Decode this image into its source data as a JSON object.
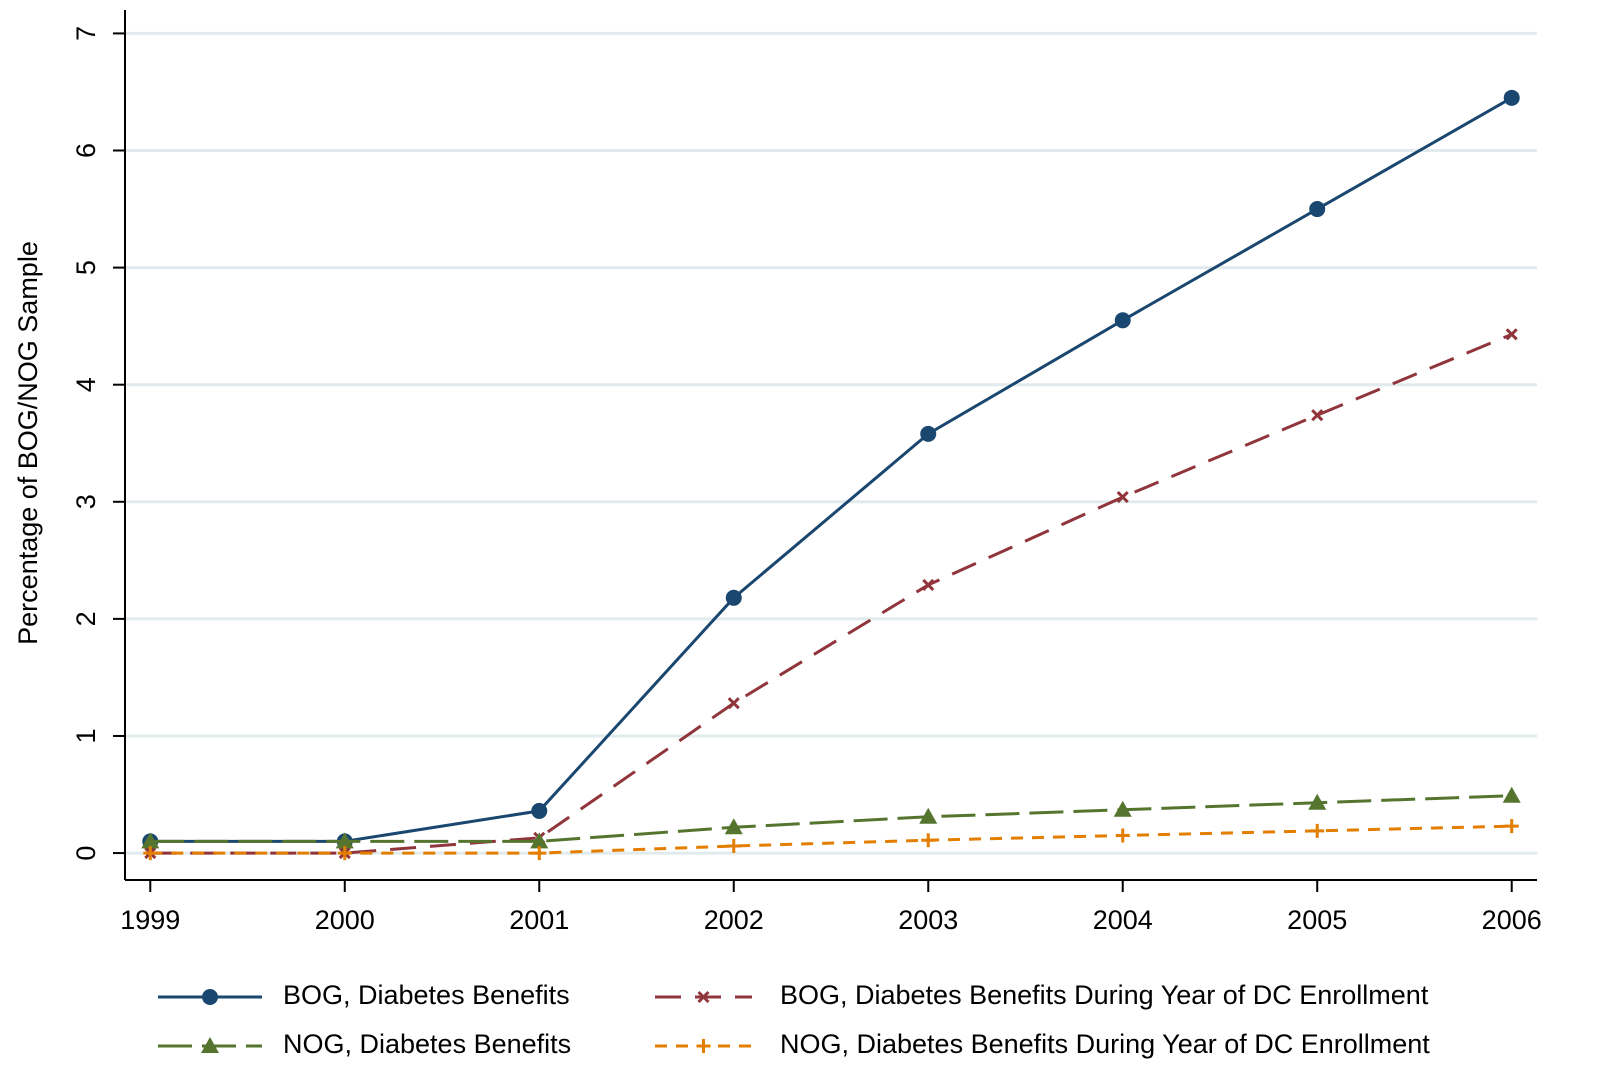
{
  "chart_data": {
    "type": "line",
    "y_label": "Percentage of BOG/NOG Sample",
    "x": [
      1999,
      2000,
      2001,
      2002,
      2003,
      2004,
      2005,
      2006
    ],
    "series": [
      {
        "name": "BOG, Diabetes Benefits",
        "color": "#1a476f",
        "marker": "circle",
        "dash": "solid",
        "values": [
          0.1,
          0.1,
          0.36,
          2.18,
          3.58,
          4.55,
          5.5,
          6.45
        ]
      },
      {
        "name": "BOG, Diabetes Benefits During Year of DC Enrollment",
        "color": "#90353b",
        "marker": "x",
        "dash": "dashed",
        "values": [
          0,
          0,
          0.13,
          1.28,
          2.29,
          3.04,
          3.74,
          4.43
        ]
      },
      {
        "name": "NOG, Diabetes Benefits",
        "color": "#55752f",
        "marker": "triangle",
        "dash": "longdash",
        "values": [
          0.1,
          0.1,
          0.1,
          0.22,
          0.31,
          0.37,
          0.43,
          0.49
        ]
      },
      {
        "name": "NOG, Diabetes Benefits During Year of DC Enrollment",
        "color": "#e37e00",
        "marker": "plus",
        "dash": "shortdash",
        "values": [
          0,
          0,
          0,
          0.06,
          0.11,
          0.15,
          0.19,
          0.23
        ]
      }
    ],
    "xlim": [
      1998.87,
      2006.13
    ],
    "xticks": [
      1999,
      2000,
      2001,
      2002,
      2003,
      2004,
      2005,
      2006
    ],
    "ylim": [
      -0.23,
      7.2
    ],
    "yticks": [
      0,
      1,
      2,
      3,
      4,
      5,
      6,
      7
    ],
    "grid": true,
    "legend": "bottom"
  }
}
